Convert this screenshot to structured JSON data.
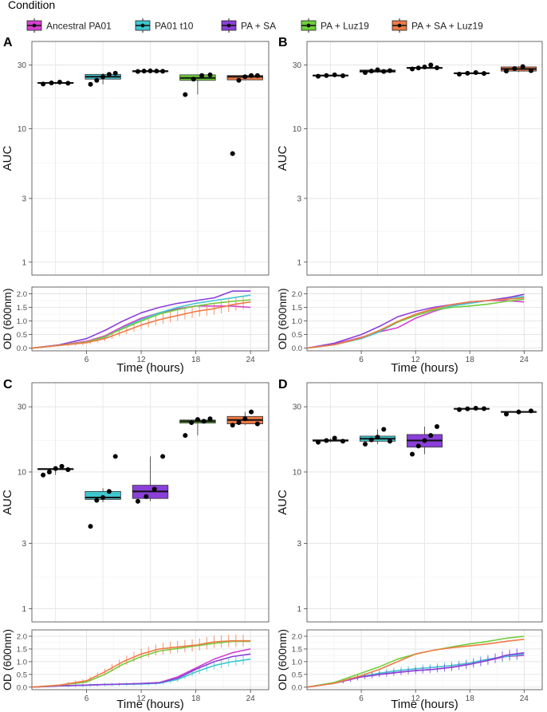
{
  "legend": {
    "title": "Condition",
    "entries": [
      {
        "label": "Ancestral PA01",
        "color": "#d63fd1"
      },
      {
        "label": "PA01 t10",
        "color": "#3ec7cf"
      },
      {
        "label": "PA + SA",
        "color": "#8b3fd9"
      },
      {
        "label": "PA + Luz19",
        "color": "#6ecf3a"
      },
      {
        "label": "PA + SA + Luz19",
        "color": "#f07a45"
      }
    ]
  },
  "chart_data": [
    {
      "panel": "A",
      "type": "box",
      "ylabel": "AUC",
      "yscale": "log",
      "yticks": [
        1,
        3,
        10,
        30
      ],
      "ylim": [
        0.8,
        45
      ],
      "groups": [
        {
          "condition": "Ancestral PA01",
          "median": 22.0,
          "q1": 21.8,
          "q3": 22.2,
          "whisker_low": 21.5,
          "whisker_high": 22.4,
          "points": [
            21.6,
            22.0,
            22.3,
            21.9
          ],
          "fill": false
        },
        {
          "condition": "PA01 t10",
          "median": 24.5,
          "q1": 23.5,
          "q3": 25.5,
          "whisker_low": 21.5,
          "whisker_high": 26.0,
          "points": [
            21.5,
            23.0,
            24.5,
            25.5,
            26.0
          ],
          "fill": true
        },
        {
          "condition": "PA + SA",
          "median": 27.0,
          "q1": 27.0,
          "q3": 27.0,
          "whisker_low": 26.8,
          "whisker_high": 27.2,
          "points": [
            26.8,
            27.0,
            27.1,
            27.0,
            26.9
          ],
          "fill": false
        },
        {
          "condition": "PA + Luz19",
          "median": 24.0,
          "q1": 23.0,
          "q3": 25.3,
          "whisker_low": 18.0,
          "whisker_high": 25.5,
          "points": [
            18.0,
            23.5,
            25.0,
            25.3
          ],
          "fill": true
        },
        {
          "condition": "PA + SA + Luz19",
          "median": 24.5,
          "q1": 23.2,
          "q3": 25.0,
          "whisker_low": 23.0,
          "whisker_high": 25.0,
          "points": [
            6.5,
            23.0,
            24.5,
            25.0,
            25.0
          ],
          "fill": true
        }
      ]
    },
    {
      "panel": "A",
      "type": "line",
      "xlabel": "Time (hours)",
      "ylabel": "OD (600nm)",
      "xticks": [
        6,
        12,
        18,
        24
      ],
      "yticks": [
        0.0,
        0.5,
        1.0,
        1.5,
        2.0
      ],
      "xlim": [
        0,
        26
      ],
      "ylim": [
        -0.1,
        2.25
      ],
      "x": [
        0,
        3,
        6,
        8,
        10,
        12,
        14,
        16,
        18,
        20,
        22,
        24
      ],
      "series": [
        {
          "name": "Ancestral PA01",
          "values": [
            0.0,
            0.1,
            0.25,
            0.45,
            0.8,
            1.1,
            1.3,
            1.45,
            1.55,
            1.55,
            1.55,
            1.5
          ]
        },
        {
          "name": "PA01 t10",
          "values": [
            0.0,
            0.1,
            0.22,
            0.4,
            0.75,
            1.05,
            1.3,
            1.5,
            1.65,
            1.75,
            1.85,
            1.95
          ]
        },
        {
          "name": "PA + SA",
          "values": [
            0.0,
            0.12,
            0.35,
            0.65,
            1.0,
            1.3,
            1.5,
            1.65,
            1.75,
            1.85,
            2.1,
            2.1
          ]
        },
        {
          "name": "PA + Luz19",
          "values": [
            0.0,
            0.1,
            0.22,
            0.42,
            0.72,
            1.0,
            1.25,
            1.42,
            1.55,
            1.65,
            1.72,
            1.78
          ]
        },
        {
          "name": "PA + SA + Luz19",
          "values": [
            0.0,
            0.1,
            0.2,
            0.35,
            0.6,
            0.85,
            1.05,
            1.2,
            1.35,
            1.45,
            1.6,
            1.7
          ],
          "errorbars": true
        }
      ]
    },
    {
      "panel": "B",
      "type": "box",
      "ylabel": "AUC",
      "yscale": "log",
      "yticks": [
        1,
        3,
        10,
        30
      ],
      "ylim": [
        0.8,
        45
      ],
      "groups": [
        {
          "condition": "Ancestral PA01",
          "median": 25.0,
          "q1": 24.8,
          "q3": 25.2,
          "whisker_low": 24.7,
          "whisker_high": 25.3,
          "points": [
            24.7,
            25.0,
            25.3,
            24.9
          ],
          "fill": false
        },
        {
          "condition": "PA01 t10",
          "median": 27.0,
          "q1": 26.5,
          "q3": 27.5,
          "whisker_low": 26.2,
          "whisker_high": 27.8,
          "points": [
            26.3,
            27.0,
            27.6,
            26.8,
            27.2
          ],
          "fill": true
        },
        {
          "condition": "PA + SA",
          "median": 28.5,
          "q1": 28.3,
          "q3": 28.8,
          "whisker_low": 28.0,
          "whisker_high": 30.0,
          "points": [
            28.0,
            28.5,
            29.0,
            30.0,
            28.6
          ],
          "fill": false
        },
        {
          "condition": "PA + Luz19",
          "median": 26.0,
          "q1": 25.8,
          "q3": 26.2,
          "whisker_low": 25.6,
          "whisker_high": 26.4,
          "points": [
            25.6,
            26.0,
            26.3,
            25.9
          ],
          "fill": true
        },
        {
          "condition": "PA + SA + Luz19",
          "median": 28.0,
          "q1": 27.0,
          "q3": 29.0,
          "whisker_low": 26.5,
          "whisker_high": 29.5,
          "points": [
            27.0,
            28.2,
            29.2,
            27.2
          ],
          "fill": true
        }
      ]
    },
    {
      "panel": "B",
      "type": "line",
      "xlabel": "Time (hours)",
      "ylabel": "OD (600nm)",
      "xticks": [
        6,
        12,
        18,
        24
      ],
      "yticks": [
        0.0,
        0.5,
        1.0,
        1.5,
        2.0
      ],
      "xlim": [
        0,
        26
      ],
      "ylim": [
        -0.1,
        2.25
      ],
      "x": [
        0,
        3,
        6,
        8,
        10,
        12,
        14,
        16,
        18,
        20,
        22,
        24
      ],
      "series": [
        {
          "name": "Ancestral PA01",
          "values": [
            0.0,
            0.15,
            0.4,
            0.6,
            0.75,
            1.1,
            1.35,
            1.55,
            1.7,
            1.75,
            1.75,
            1.7
          ]
        },
        {
          "name": "PA01 t10",
          "values": [
            0.0,
            0.12,
            0.35,
            0.6,
            0.95,
            1.2,
            1.4,
            1.55,
            1.65,
            1.75,
            1.85,
            1.9
          ]
        },
        {
          "name": "PA + SA",
          "values": [
            0.0,
            0.18,
            0.5,
            0.8,
            1.15,
            1.35,
            1.5,
            1.6,
            1.7,
            1.75,
            1.85,
            1.98
          ]
        },
        {
          "name": "PA + Luz19",
          "values": [
            0.0,
            0.12,
            0.38,
            0.65,
            0.95,
            1.2,
            1.4,
            1.5,
            1.55,
            1.62,
            1.72,
            1.8
          ]
        },
        {
          "name": "PA + SA + Luz19",
          "values": [
            0.0,
            0.12,
            0.38,
            0.65,
            0.98,
            1.25,
            1.45,
            1.6,
            1.7,
            1.75,
            1.8,
            1.85
          ]
        }
      ]
    },
    {
      "panel": "C",
      "type": "box",
      "ylabel": "AUC",
      "yscale": "log",
      "yticks": [
        1,
        3,
        10,
        30
      ],
      "ylim": [
        0.8,
        45
      ],
      "groups": [
        {
          "condition": "Ancestral PA01",
          "median": 10.5,
          "q1": 10.4,
          "q3": 10.6,
          "whisker_low": 9.5,
          "whisker_high": 11.0,
          "points": [
            9.5,
            10.0,
            10.6,
            11.0,
            10.4
          ],
          "fill": false
        },
        {
          "condition": "PA01 t10",
          "median": 6.5,
          "q1": 6.3,
          "q3": 7.2,
          "whisker_low": 6.0,
          "whisker_high": 7.6,
          "points": [
            4.0,
            6.2,
            6.5,
            7.2,
            13.0
          ],
          "fill": true
        },
        {
          "condition": "PA + SA",
          "median": 7.2,
          "q1": 6.4,
          "q3": 8.0,
          "whisker_low": 6.1,
          "whisker_high": 13.0,
          "points": [
            6.1,
            6.6,
            7.5,
            13.0
          ],
          "fill": true
        },
        {
          "condition": "PA + Luz19",
          "median": 23.5,
          "q1": 22.8,
          "q3": 24.0,
          "whisker_low": 18.5,
          "whisker_high": 24.5,
          "points": [
            18.5,
            23.0,
            24.2,
            23.5,
            24.5
          ],
          "fill": true
        },
        {
          "condition": "PA + SA + Luz19",
          "median": 24.0,
          "q1": 22.5,
          "q3": 25.5,
          "whisker_low": 22.0,
          "whisker_high": 27.5,
          "points": [
            22.0,
            23.0,
            24.5,
            27.5,
            22.5
          ],
          "fill": true
        }
      ]
    },
    {
      "panel": "C",
      "type": "line",
      "xlabel": "Time (hours)",
      "ylabel": "OD (600nm)",
      "xticks": [
        6,
        12,
        18,
        24
      ],
      "yticks": [
        0.0,
        0.5,
        1.0,
        1.5,
        2.0
      ],
      "xlim": [
        0,
        26
      ],
      "ylim": [
        -0.1,
        2.25
      ],
      "x": [
        0,
        3,
        6,
        8,
        10,
        12,
        14,
        16,
        18,
        20,
        22,
        24
      ],
      "series": [
        {
          "name": "Ancestral PA01",
          "values": [
            0.0,
            0.05,
            0.08,
            0.1,
            0.12,
            0.14,
            0.18,
            0.4,
            0.75,
            1.1,
            1.35,
            1.5
          ]
        },
        {
          "name": "PA01 t10",
          "values": [
            0.0,
            0.05,
            0.08,
            0.1,
            0.11,
            0.12,
            0.15,
            0.3,
            0.6,
            0.85,
            1.0,
            1.1
          ],
          "errorbars": true
        },
        {
          "name": "PA + SA",
          "values": [
            0.0,
            0.05,
            0.08,
            0.1,
            0.12,
            0.14,
            0.17,
            0.35,
            0.7,
            1.0,
            1.2,
            1.3
          ]
        },
        {
          "name": "PA + Luz19",
          "values": [
            0.0,
            0.08,
            0.2,
            0.5,
            0.9,
            1.2,
            1.42,
            1.52,
            1.62,
            1.72,
            1.8,
            1.8
          ]
        },
        {
          "name": "PA + SA + Luz19",
          "values": [
            0.0,
            0.08,
            0.25,
            0.6,
            1.0,
            1.3,
            1.5,
            1.58,
            1.65,
            1.78,
            1.82,
            1.82
          ],
          "errorbars": true
        }
      ]
    },
    {
      "panel": "D",
      "type": "box",
      "ylabel": "AUC",
      "yscale": "log",
      "yticks": [
        1,
        3,
        10,
        30
      ],
      "ylim": [
        0.8,
        45
      ],
      "groups": [
        {
          "condition": "Ancestral PA01",
          "median": 17.0,
          "q1": 16.8,
          "q3": 17.2,
          "whisker_low": 16.5,
          "whisker_high": 17.7,
          "points": [
            16.5,
            17.0,
            17.7,
            16.8
          ],
          "fill": false
        },
        {
          "condition": "PA01 t10",
          "median": 17.5,
          "q1": 16.8,
          "q3": 18.3,
          "whisker_low": 16.0,
          "whisker_high": 20.5,
          "points": [
            16.0,
            17.2,
            18.0,
            20.5,
            16.8
          ],
          "fill": true
        },
        {
          "condition": "PA + SA",
          "median": 17.0,
          "q1": 15.2,
          "q3": 18.8,
          "whisker_low": 13.5,
          "whisker_high": 21.5,
          "points": [
            13.5,
            15.5,
            17.0,
            18.5,
            21.5
          ],
          "fill": true
        },
        {
          "condition": "PA + Luz19",
          "median": 29.0,
          "q1": 28.8,
          "q3": 29.2,
          "whisker_low": 28.6,
          "whisker_high": 29.4,
          "points": [
            28.6,
            29.0,
            29.3,
            29.1
          ],
          "fill": false
        },
        {
          "condition": "PA + SA + Luz19",
          "median": 27.5,
          "q1": 27.3,
          "q3": 27.7,
          "whisker_low": 26.5,
          "whisker_high": 28.0,
          "points": [
            26.5,
            27.5,
            28.0
          ],
          "fill": false
        }
      ]
    },
    {
      "panel": "D",
      "type": "line",
      "xlabel": "Time (hours)",
      "ylabel": "OD (600nm)",
      "xticks": [
        6,
        12,
        18,
        24
      ],
      "yticks": [
        0.0,
        0.5,
        1.0,
        1.5,
        2.0
      ],
      "xlim": [
        0,
        26
      ],
      "ylim": [
        -0.1,
        2.25
      ],
      "x": [
        0,
        3,
        6,
        8,
        10,
        12,
        14,
        16,
        18,
        20,
        22,
        24
      ],
      "series": [
        {
          "name": "Ancestral PA01",
          "values": [
            0.0,
            0.15,
            0.4,
            0.5,
            0.58,
            0.65,
            0.7,
            0.78,
            0.9,
            1.05,
            1.2,
            1.25
          ]
        },
        {
          "name": "PA01 t10",
          "values": [
            0.0,
            0.15,
            0.42,
            0.55,
            0.65,
            0.72,
            0.78,
            0.85,
            0.95,
            1.1,
            1.2,
            1.3
          ],
          "errorbars": true
        },
        {
          "name": "PA + SA",
          "values": [
            0.0,
            0.15,
            0.4,
            0.5,
            0.58,
            0.65,
            0.7,
            0.78,
            0.9,
            1.05,
            1.25,
            1.35
          ],
          "errorbars": true
        },
        {
          "name": "PA + Luz19",
          "values": [
            0.0,
            0.18,
            0.55,
            0.8,
            1.1,
            1.3,
            1.45,
            1.58,
            1.7,
            1.8,
            1.92,
            2.0
          ]
        },
        {
          "name": "PA + SA + Luz19",
          "values": [
            0.0,
            0.15,
            0.45,
            0.7,
            1.0,
            1.3,
            1.45,
            1.55,
            1.62,
            1.7,
            1.8,
            1.88
          ]
        }
      ]
    }
  ]
}
